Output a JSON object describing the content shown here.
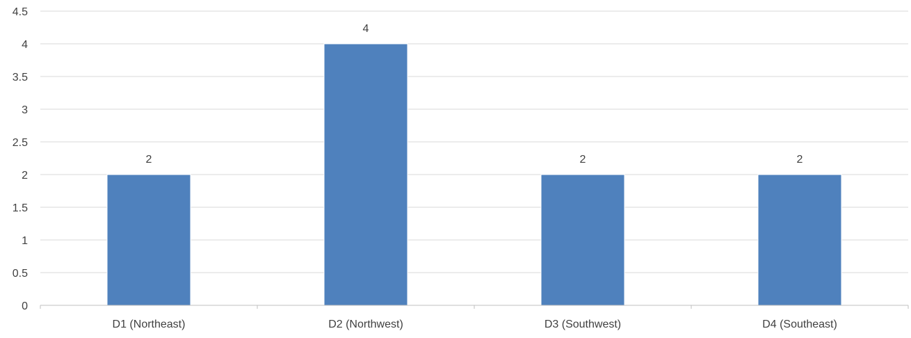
{
  "chart_data": {
    "type": "bar",
    "categories": [
      "D1 (Northeast)",
      "D2 (Northwest)",
      "D3 (Southwest)",
      "D4 (Southeast)"
    ],
    "values": [
      2,
      4,
      2,
      2
    ],
    "data_labels": [
      "2",
      "4",
      "2",
      "2"
    ],
    "ylim": [
      0,
      4.5
    ],
    "yticks": [
      "0",
      "0.5",
      "1",
      "1.5",
      "2",
      "2.5",
      "3",
      "3.5",
      "4",
      "4.5"
    ],
    "grid": true,
    "legend": "none",
    "colors": {
      "bar": "#4F81BD",
      "grid": "#D9D9D9",
      "axis": "#BFBFBF",
      "text": "#404040"
    }
  }
}
